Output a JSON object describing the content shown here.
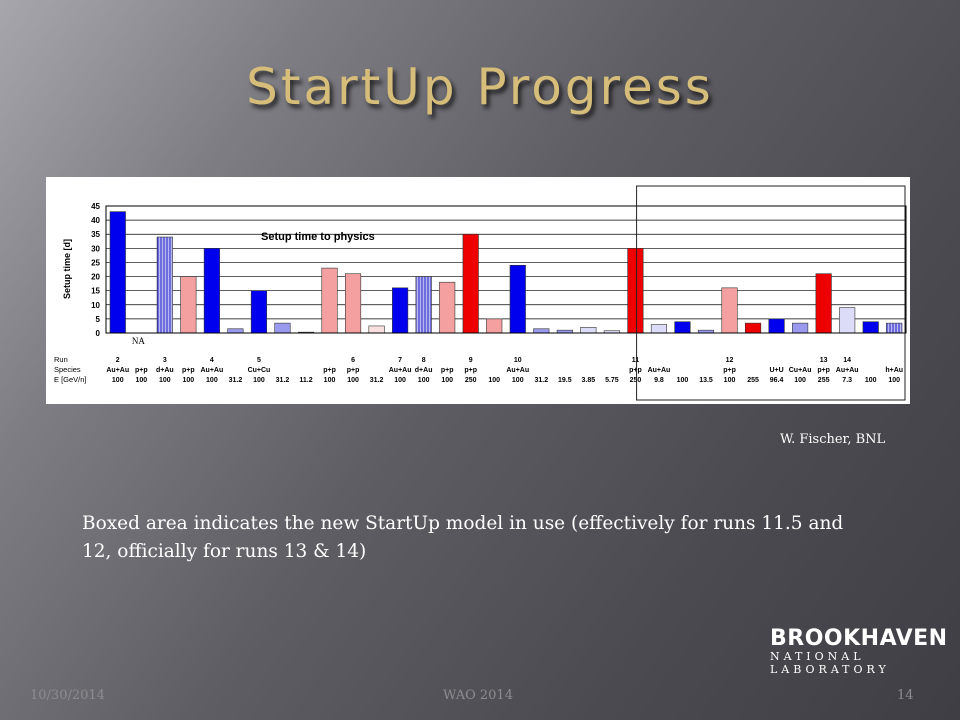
{
  "slide": {
    "title": "StartUp Progress",
    "credit": "W. Fischer, BNL",
    "caption": "Boxed area indicates the new StartUp model in use (effectively for runs 11.5 and 12, officially for runs 13 & 14)",
    "logo_main": "BROOKHAVEN",
    "logo_sub": "NATIONAL LABORATORY",
    "footer_date": "10/30/2014",
    "footer_event": "WAO 2014",
    "footer_page": "14"
  },
  "chart_data": {
    "type": "bar",
    "title": "Setup time to physics",
    "ylabel": "Setup time [d]",
    "ylim": [
      0,
      45
    ],
    "yticks": [
      0,
      5,
      10,
      15,
      20,
      25,
      30,
      35,
      40,
      45
    ],
    "row_labels": [
      "Run",
      "Species",
      "E [GeV/n]"
    ],
    "na_label": "NA",
    "colors": {
      "au": "#0000ee",
      "au_light": "#9999ee",
      "au_pale": "#dcdcf8",
      "hatched": "#8888dd",
      "pp": "#f2f2f2",
      "pp_light": "#f4a0a0",
      "pp_pale": "#f8e0e0",
      "pp_dark": "#ee0000"
    },
    "new_model_box_from_index": 22,
    "bars": [
      {
        "run": "2",
        "species": "Au+Au",
        "energy": "100",
        "value": 43,
        "style": "au"
      },
      {
        "run": "",
        "species": "p+p",
        "energy": "100",
        "value": 0,
        "style": "au"
      },
      {
        "run": "3",
        "species": "d+Au",
        "energy": "100",
        "value": 34,
        "style": "hatched"
      },
      {
        "run": "",
        "species": "p+p",
        "energy": "100",
        "value": 20,
        "style": "pp_light"
      },
      {
        "run": "4",
        "species": "Au+Au",
        "energy": "100",
        "value": 30,
        "style": "au"
      },
      {
        "run": "",
        "species": "",
        "energy": "31.2",
        "value": 1.5,
        "style": "au_light"
      },
      {
        "run": "5",
        "species": "Cu+Cu",
        "energy": "100",
        "value": 15,
        "style": "au"
      },
      {
        "run": "",
        "species": "",
        "energy": "31.2",
        "value": 3.5,
        "style": "au_light"
      },
      {
        "run": "",
        "species": "",
        "energy": "11.2",
        "value": 0.3,
        "style": "au_light"
      },
      {
        "run": "",
        "species": "p+p",
        "energy": "100",
        "value": 23,
        "style": "pp_light"
      },
      {
        "run": "6",
        "species": "p+p",
        "energy": "100",
        "value": 21,
        "style": "pp_light"
      },
      {
        "run": "",
        "species": "",
        "energy": "31.2",
        "value": 2.5,
        "style": "pp_pale"
      },
      {
        "run": "7",
        "species": "Au+Au",
        "energy": "100",
        "value": 16,
        "style": "au"
      },
      {
        "run": "8",
        "species": "d+Au",
        "energy": "100",
        "value": 20,
        "style": "hatched"
      },
      {
        "run": "",
        "species": "p+p",
        "energy": "100",
        "value": 18,
        "style": "pp_light"
      },
      {
        "run": "9",
        "species": "p+p",
        "energy": "250",
        "value": 35,
        "style": "pp_dark"
      },
      {
        "run": "",
        "species": "",
        "energy": "100",
        "value": 5,
        "style": "pp_light"
      },
      {
        "run": "10",
        "species": "Au+Au",
        "energy": "100",
        "value": 24,
        "style": "au"
      },
      {
        "run": "",
        "species": "",
        "energy": "31.2",
        "value": 1.5,
        "style": "au_light"
      },
      {
        "run": "",
        "species": "",
        "energy": "19.5",
        "value": 1.0,
        "style": "au_light"
      },
      {
        "run": "",
        "species": "",
        "energy": "3.85",
        "value": 2.0,
        "style": "au_pale"
      },
      {
        "run": "",
        "species": "",
        "energy": "5.75",
        "value": 0.8,
        "style": "au_pale"
      },
      {
        "run": "11",
        "species": "p+p",
        "energy": "250",
        "value": 30,
        "style": "pp_dark"
      },
      {
        "run": "",
        "species": "Au+Au",
        "energy": "9.8",
        "value": 3,
        "style": "au_pale"
      },
      {
        "run": "",
        "species": "",
        "energy": "100",
        "value": 4,
        "style": "au"
      },
      {
        "run": "",
        "species": "",
        "energy": "13.5",
        "value": 1,
        "style": "au_light"
      },
      {
        "run": "12",
        "species": "p+p",
        "energy": "100",
        "value": 16,
        "style": "pp_light"
      },
      {
        "run": "",
        "species": "",
        "energy": "255",
        "value": 3.5,
        "style": "pp_dark"
      },
      {
        "run": "",
        "species": "U+U",
        "energy": "96.4",
        "value": 5,
        "style": "au"
      },
      {
        "run": "",
        "species": "Cu+Au",
        "energy": "100",
        "value": 3.5,
        "style": "au_light"
      },
      {
        "run": "13",
        "species": "p+p",
        "energy": "255",
        "value": 21,
        "style": "pp_dark"
      },
      {
        "run": "14",
        "species": "Au+Au",
        "energy": "7.3",
        "value": 9,
        "style": "au_pale"
      },
      {
        "run": "",
        "species": "",
        "energy": "100",
        "value": 4,
        "style": "au"
      },
      {
        "run": "",
        "species": "h+Au",
        "energy": "100",
        "value": 3.5,
        "style": "hatched"
      }
    ]
  }
}
